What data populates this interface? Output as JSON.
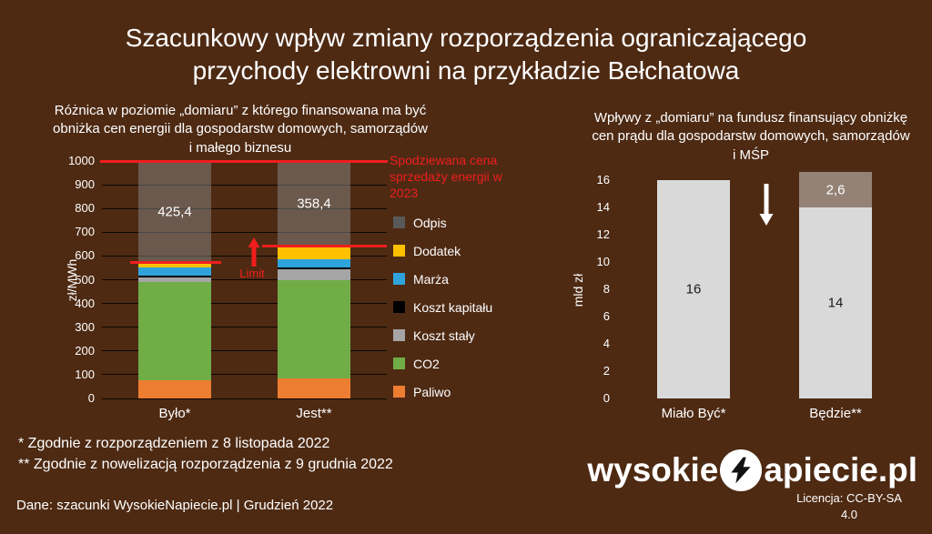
{
  "slide": {
    "title": "Szacunkowy wpływ zmiany rozporządzenia ograniczającego przychody elektrowni na przykładzie Bełchatowa",
    "background": "#4e2a13",
    "footnote1": "* Zgodnie z rozporządzeniem z 8 listopada 2022",
    "footnote2": "** Zgodnie z nowelizacją rozporządzenia z 9 grudnia 2022",
    "source": "Dane: szacunki WysokieNapiecie.pl  |  Grudzień 2022",
    "license_line1": "Licencja: CC-BY-SA",
    "license_line2": "4.0",
    "logo": {
      "part1": "wysokie",
      "part2": "apiecie.pl",
      "bolt_icon": "lightning-bolt-icon"
    }
  },
  "chart_data": [
    {
      "type": "bar",
      "stacked": true,
      "title": "Różnica w poziomie „domiaru” z którego finansowana ma być obniżka cen energii dla gospodarstw domowych, samorządów i małego biznesu",
      "ylabel": "zł/MWh",
      "ylim": [
        0,
        1000
      ],
      "ytick_step": 100,
      "grid": true,
      "legend_position": "right",
      "categories": [
        "Było*",
        "Jest**"
      ],
      "series": [
        {
          "name": "Paliwo",
          "color": "#ED7D31",
          "values": [
            75,
            85
          ]
        },
        {
          "name": "CO2",
          "color": "#70AD47",
          "values": [
            415,
            415
          ]
        },
        {
          "name": "Koszt stały",
          "color": "#A5A5A5",
          "values": [
            20,
            45
          ]
        },
        {
          "name": "Koszt kapitału",
          "color": "#000000",
          "values": [
            8,
            8
          ]
        },
        {
          "name": "Marża",
          "color": "#2FA3DC",
          "values": [
            32,
            35
          ]
        },
        {
          "name": "Dodatek",
          "color": "#FFC000",
          "values": [
            24.6,
            53.6
          ]
        },
        {
          "name": "Odpis",
          "color": "rgba(135,135,135,0.5)",
          "legend_color": "#595959",
          "values": [
            425.4,
            358.4
          ],
          "labels": [
            "425,4",
            "358,4"
          ],
          "label_color": "#ffffff"
        }
      ],
      "legend_order": [
        "Odpis",
        "Dodatek",
        "Marża",
        "Koszt kapitału",
        "Koszt stały",
        "CO2",
        "Paliwo"
      ],
      "annotations": {
        "price_line_value": 1000,
        "price_line_label": "Spodziewana cena sprzedaży energii w 2023",
        "limit_label": "Limit",
        "limit_values": [
          574.6,
          641.6
        ],
        "annotation_color": "#f01e1e"
      }
    },
    {
      "type": "bar",
      "stacked": true,
      "title": "Wpływy z „domiaru” na fundusz finansujący obniżkę cen prądu dla gospodarstw domowych, samorządów i MŚP",
      "ylabel": "mld zł",
      "ylim": [
        0,
        16
      ],
      "ytick_step": 2,
      "grid": false,
      "categories": [
        "Miało Być*",
        "Będzie**"
      ],
      "series": [
        {
          "name": "segment_lower",
          "color": "#D9D9D9",
          "values": [
            16,
            14
          ],
          "labels": [
            "16",
            "14"
          ],
          "label_color": "#1a1a1a"
        },
        {
          "name": "segment_upper",
          "color": "rgba(217,217,217,0.5)",
          "values": [
            0,
            2.6
          ],
          "labels": [
            "",
            "2,6"
          ],
          "label_color": "#ffffff"
        }
      ]
    }
  ]
}
